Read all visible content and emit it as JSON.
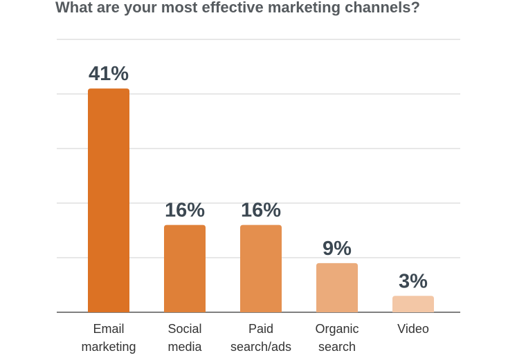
{
  "chart_data": {
    "type": "bar",
    "title": "What are your most effective marketing channels?",
    "categories": [
      "Email marketing",
      "Social media",
      "Paid search/ads",
      "Organic search",
      "Video"
    ],
    "values": [
      41,
      16,
      16,
      9,
      3
    ],
    "value_labels": [
      "41%",
      "16%",
      "16%",
      "9%",
      "3%"
    ],
    "colors": [
      "#dc7224",
      "#df8038",
      "#e48f4e",
      "#ebab7b",
      "#f3c7a6"
    ],
    "ylim": [
      0,
      50
    ],
    "yticks": [
      0,
      10,
      20,
      30,
      40,
      50
    ],
    "grid": true
  }
}
